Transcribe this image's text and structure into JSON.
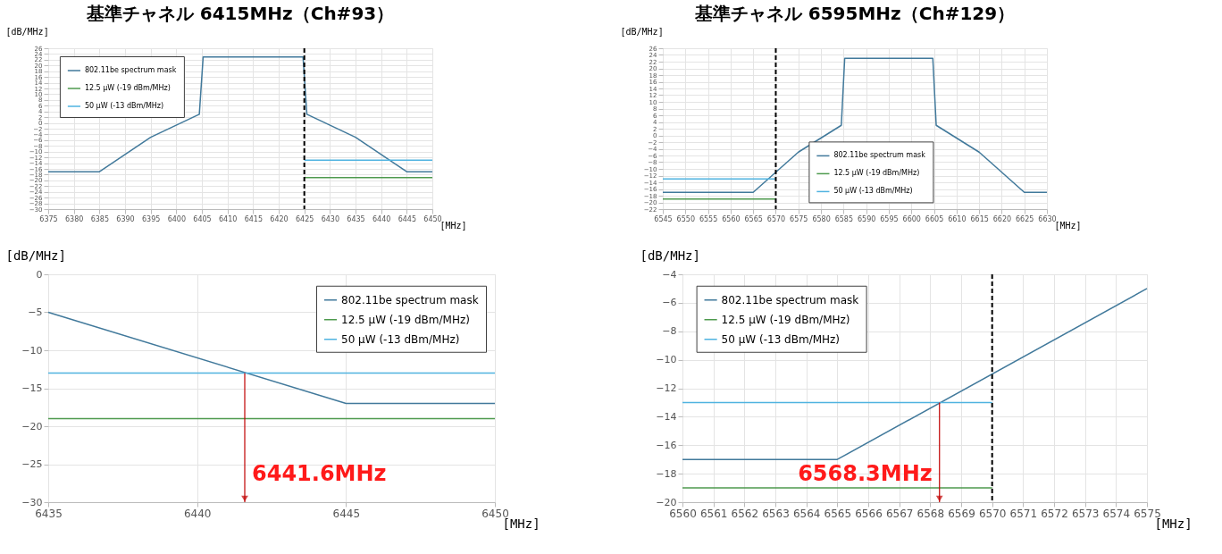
{
  "chart_data": [
    {
      "type": "line",
      "title": "基準チャネル 6415MHz（Ch#93）",
      "xlabel": "[MHz]",
      "ylabel": "[dB/MHz]",
      "xlim": [
        6375,
        6450
      ],
      "xticks": [
        6375,
        6380,
        6385,
        6390,
        6395,
        6400,
        6405,
        6410,
        6415,
        6420,
        6425,
        6430,
        6435,
        6440,
        6445,
        6450
      ],
      "ylim": [
        -30,
        26
      ],
      "yticks": [
        -30,
        -28,
        -26,
        -24,
        -22,
        -20,
        -18,
        -16,
        -14,
        -12,
        -10,
        -8,
        -6,
        -4,
        -2,
        0,
        2,
        4,
        6,
        8,
        10,
        12,
        14,
        16,
        18,
        20,
        22,
        24,
        26
      ],
      "grid": true,
      "legend": "top left",
      "series": [
        {
          "name": "802.11be spectrum mask",
          "color": "#41799b",
          "x": [
            6375,
            6385,
            6395,
            6404.5,
            6405.25,
            6424.75,
            6425.5,
            6435,
            6445,
            6450
          ],
          "values": [
            -17,
            -17,
            -5,
            3,
            23,
            23,
            3,
            -5,
            -17,
            -17
          ]
        },
        {
          "name": "12.5 μW (-19 dBm/MHz)",
          "color": "#4e9a4e",
          "x": [
            6425,
            6450
          ],
          "values": [
            -19,
            -19
          ]
        },
        {
          "name": "50 μW (-13 dBm/MHz)",
          "color": "#4fb3e0",
          "x": [
            6425,
            6450
          ],
          "values": [
            -13,
            -13
          ]
        }
      ],
      "ref_lines": [
        {
          "axis": "x",
          "value": 6425,
          "color": "#000000",
          "line_style": "dashed"
        }
      ]
    },
    {
      "type": "line",
      "title": "基準チャネル 6595MHz（Ch#129）",
      "xlabel": "[MHz]",
      "ylabel": "[dB/MHz]",
      "xlim": [
        6545,
        6630
      ],
      "xticks": [
        6545,
        6550,
        6555,
        6560,
        6565,
        6570,
        6575,
        6580,
        6585,
        6590,
        6595,
        6600,
        6605,
        6610,
        6615,
        6620,
        6625,
        6630
      ],
      "ylim": [
        -22,
        26
      ],
      "yticks": [
        -22,
        -20,
        -18,
        -16,
        -14,
        -12,
        -10,
        -8,
        -6,
        -4,
        -2,
        0,
        2,
        4,
        6,
        8,
        10,
        12,
        14,
        16,
        18,
        20,
        22,
        24,
        26
      ],
      "grid": true,
      "legend": "bottom",
      "series": [
        {
          "name": "802.11be spectrum mask",
          "color": "#41799b",
          "x": [
            6545,
            6565,
            6575,
            6584.5,
            6585.25,
            6604.75,
            6605.5,
            6615,
            6625,
            6630
          ],
          "values": [
            -17,
            -17,
            -5,
            3,
            23,
            23,
            3,
            -5,
            -17,
            -17
          ]
        },
        {
          "name": "12.5 μW (-19 dBm/MHz)",
          "color": "#4e9a4e",
          "x": [
            6545,
            6570
          ],
          "values": [
            -19,
            -19
          ]
        },
        {
          "name": "50 μW (-13 dBm/MHz)",
          "color": "#4fb3e0",
          "x": [
            6545,
            6570
          ],
          "values": [
            -13,
            -13
          ]
        }
      ],
      "ref_lines": [
        {
          "axis": "x",
          "value": 6570,
          "color": "#000000",
          "line_style": "dashed"
        }
      ]
    },
    {
      "type": "line",
      "xlabel": "[MHz]",
      "ylabel": "[dB/MHz]",
      "xlim": [
        6435,
        6450
      ],
      "xticks": [
        6435,
        6440,
        6445,
        6450
      ],
      "ylim": [
        -30,
        0
      ],
      "yticks": [
        -30,
        -25,
        -20,
        -15,
        -10,
        -5,
        0
      ],
      "grid": true,
      "legend": "top right",
      "series": [
        {
          "name": "802.11be spectrum mask",
          "color": "#41799b",
          "x": [
            6435,
            6445,
            6450
          ],
          "values": [
            -5,
            -17,
            -17
          ]
        },
        {
          "name": "12.5 μW (-19 dBm/MHz)",
          "color": "#4e9a4e",
          "x": [
            6435,
            6450
          ],
          "values": [
            -19,
            -19
          ]
        },
        {
          "name": "50 μW (-13 dBm/MHz)",
          "color": "#4fb3e0",
          "x": [
            6435,
            6450
          ],
          "values": [
            -13,
            -13
          ]
        }
      ],
      "annotations": [
        {
          "text": "6441.6MHz",
          "x": 6441.6,
          "y": -13
        }
      ]
    },
    {
      "type": "line",
      "xlabel": "[MHz]",
      "ylabel": "[dB/MHz]",
      "xlim": [
        6560,
        6575
      ],
      "xticks": [
        6560,
        6561,
        6562,
        6563,
        6564,
        6565,
        6566,
        6567,
        6568,
        6569,
        6570,
        6571,
        6572,
        6573,
        6574,
        6575
      ],
      "ylim": [
        -20,
        -4
      ],
      "yticks": [
        -20,
        -18,
        -16,
        -14,
        -12,
        -10,
        -8,
        -6,
        -4
      ],
      "grid": true,
      "legend": "top left",
      "series": [
        {
          "name": "802.11be spectrum mask",
          "color": "#41799b",
          "x": [
            6560,
            6565,
            6575
          ],
          "values": [
            -17,
            -17,
            -5
          ]
        },
        {
          "name": "12.5 μW (-19 dBm/MHz)",
          "color": "#4e9a4e",
          "x": [
            6560,
            6570
          ],
          "values": [
            -19,
            -19
          ]
        },
        {
          "name": "50 μW (-13 dBm/MHz)",
          "color": "#4fb3e0",
          "x": [
            6560,
            6570
          ],
          "values": [
            -13,
            -13
          ]
        }
      ],
      "ref_lines": [
        {
          "axis": "x",
          "value": 6570,
          "color": "#000000",
          "line_style": "dashed"
        }
      ],
      "annotations": [
        {
          "text": "6568.3MHz",
          "x": 6568.3,
          "y": -13
        }
      ]
    }
  ]
}
